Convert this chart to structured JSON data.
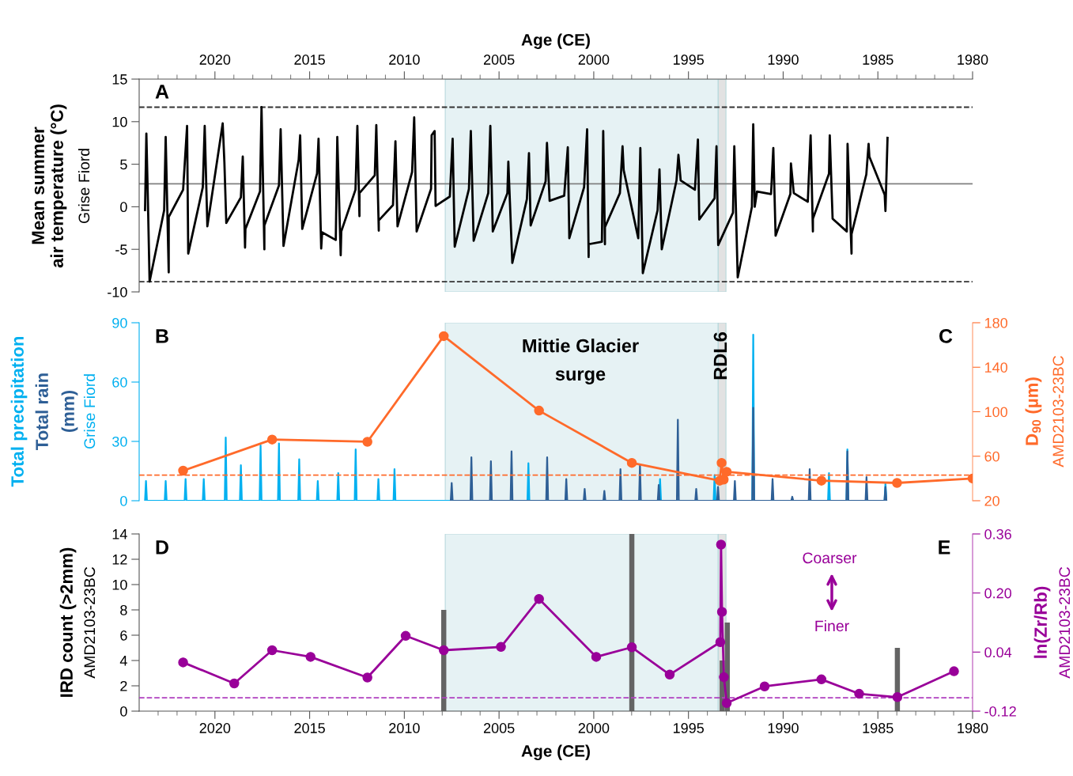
{
  "chart_data": [
    {
      "type": "line",
      "xlabel": "Age (CE)",
      "ylabel": "Mean summer\nair temperature (°C)",
      "annotations": [
        "A",
        "Grise Fiord"
      ],
      "xlim": [
        2024,
        1980
      ],
      "xticks": [
        {
          "value": 2023,
          "label": null
        },
        {
          "value": 2022,
          "label": null
        },
        {
          "value": 2021,
          "label": null
        },
        2020,
        {
          "value": 2019,
          "label": null
        },
        {
          "value": 2018,
          "label": null
        },
        {
          "value": 2017,
          "label": null
        },
        {
          "value": 2016,
          "label": null
        },
        2015,
        {
          "value": 2014,
          "label": null
        },
        {
          "value": 2013,
          "label": null
        },
        {
          "value": 2012,
          "label": null
        },
        {
          "value": 2011,
          "label": null
        },
        2010,
        {
          "value": 2009,
          "label": null
        },
        {
          "value": 2008,
          "label": null
        },
        {
          "value": 2007,
          "label": null
        },
        {
          "value": 2006,
          "label": null
        },
        2005,
        {
          "value": 2004,
          "label": null
        },
        {
          "value": 2003,
          "label": null
        },
        {
          "value": 2002,
          "label": null
        },
        {
          "value": 2001,
          "label": null
        },
        2000,
        {
          "value": 1999,
          "label": null
        },
        {
          "value": 1998,
          "label": null
        },
        {
          "value": 1997,
          "label": null
        },
        {
          "value": 1996,
          "label": null
        },
        1995,
        {
          "value": 1994,
          "label": null
        },
        {
          "value": 1993,
          "label": null
        },
        {
          "value": 1992,
          "label": null
        },
        {
          "value": 1991,
          "label": null
        },
        1990,
        {
          "value": 1989,
          "label": null
        },
        {
          "value": 1988,
          "label": null
        },
        {
          "value": 1987,
          "label": null
        },
        {
          "value": 1986,
          "label": null
        },
        1985,
        {
          "value": 1984,
          "label": null
        },
        {
          "value": 1983,
          "label": null
        },
        {
          "value": 1982,
          "label": null
        },
        {
          "value": 1981,
          "label": null
        },
        1980
      ],
      "ylim": [
        -10,
        15
      ],
      "yticks": [
        -10,
        -5,
        0,
        5,
        10,
        15
      ],
      "series": [
        {
          "color": "#000000",
          "x": [
            2023.69,
            2023.62,
            2023.54,
            2023.45,
            2022.68,
            2022.6,
            2022.44,
            2022.44,
            2021.68,
            2021.47,
            2021.41,
            2020.64,
            2020.54,
            2020.4,
            2019.59,
            2019.5,
            2019.4,
            2018.63,
            2018.53,
            2018.41,
            2018.39,
            2017.62,
            2017.54,
            2017.39,
            2017.39,
            2016.62,
            2016.53,
            2016.38,
            2015.58,
            2015.5,
            2015.39,
            2014.61,
            2014.53,
            2014.39,
            2014.34,
            2013.62,
            2013.54,
            2013.36,
            2013.33,
            2012.58,
            2012.48,
            2012.37,
            2012.37,
            2011.56,
            2011.48,
            2011.35,
            2011.35,
            2010.6,
            2010.47,
            2010.36,
            2009.59,
            2009.48,
            2009.35,
            2008.59,
            2008.56,
            2008.4,
            2008.35,
            2007.6,
            2007.45,
            2007.34,
            2006.59,
            2006.49,
            2006.34,
            2005.57,
            2005.46,
            2005.33,
            2004.56,
            2004.51,
            2004.3,
            2003.53,
            2003.42,
            2003.33,
            2002.54,
            2002.47,
            2002.33,
            2001.56,
            2001.37,
            2001.29,
            2000.51,
            2000.35,
            2000.27,
            2000.27,
            1999.57,
            1999.5,
            1999.41,
            1999.41,
            1998.62,
            1998.48,
            1998.42,
            1997.65,
            1997.54,
            1997.41,
            1996.63,
            1996.53,
            1996.41,
            1995.63,
            1995.53,
            1995.41,
            1994.66,
            1994.5,
            1994.43,
            1993.62,
            1993.52,
            1993.43,
            1992.65,
            1992.58,
            1992.4,
            1991.65,
            1991.58,
            1991.5,
            1991.38,
            1990.64,
            1990.52,
            1990.4,
            1989.62,
            1989.59,
            1989.44,
            1988.7,
            1988.55,
            1988.43,
            1988.43,
            1987.58,
            1987.54,
            1987.39,
            1986.64,
            1986.6,
            1986.39,
            1986.39,
            1985.61,
            1985.49,
            1985.45,
            1984.64,
            1984.6,
            1984.49
          ],
          "values": [
            -0.4,
            8.6,
            0.9,
            -8.8,
            -0.4,
            8.2,
            -7.7,
            -1.2,
            2.0,
            9.5,
            -5.5,
            2.3,
            9.5,
            -2.3,
            9.8,
            5.2,
            -1.9,
            1.1,
            5.9,
            -4.8,
            -2.6,
            1.8,
            11.7,
            -5.0,
            -2.2,
            2.5,
            9.1,
            -4.6,
            5.5,
            8.4,
            -2.6,
            3.9,
            8.0,
            -4.9,
            -3.0,
            -3.9,
            8.2,
            -5.7,
            -2.9,
            2.0,
            9.5,
            -1.1,
            1.6,
            3.7,
            9.6,
            -2.8,
            -1.6,
            0.2,
            7.7,
            -2.3,
            4.1,
            10.5,
            -2.9,
            2.1,
            8.4,
            8.9,
            0.1,
            1.2,
            8.0,
            -4.7,
            2.1,
            8.9,
            -4.0,
            1.6,
            9.5,
            -2.9,
            1.6,
            5.3,
            -6.6,
            0.9,
            6.3,
            -2.2,
            3.0,
            7.5,
            0.7,
            1.3,
            7.0,
            -3.7,
            2.3,
            9.1,
            -5.9,
            -4.4,
            -4.1,
            8.9,
            -4.4,
            -2.4,
            1.6,
            7.1,
            4.3,
            -3.7,
            6.9,
            -7.8,
            -0.4,
            4.4,
            -5.0,
            3.1,
            6.1,
            3.1,
            2.0,
            7.9,
            -1.5,
            1.0,
            7.1,
            -4.5,
            -0.7,
            7.1,
            -8.3,
            0.0,
            9.7,
            0.0,
            1.8,
            1.5,
            6.9,
            -3.4,
            1.5,
            5.1,
            1.6,
            0.6,
            8.4,
            -2.9,
            -1.4,
            3.9,
            8.4,
            -1.4,
            -2.9,
            7.4,
            -5.5,
            -3.2,
            3.8,
            7.4,
            5.9,
            1.4,
            -0.5,
            8.1
          ]
        }
      ],
      "ref_lines": [
        {
          "axis": "y",
          "value": 11.7,
          "line_style": "dashed",
          "color": "#333333"
        },
        {
          "axis": "y",
          "value": 2.7,
          "line_style": "solid",
          "color": "#808080"
        },
        {
          "axis": "y",
          "value": -8.8,
          "line_style": "dashed",
          "color": "#333333"
        }
      ],
      "bands": [
        {
          "axis": "x",
          "from": 2007.84,
          "to": 1993.43,
          "color": "#e6f2f4"
        },
        {
          "axis": "x",
          "from": 1993.43,
          "to": 1993.02,
          "color": "#e2e2e2"
        }
      ]
    },
    {
      "type": "line",
      "ylabel": "(mm)",
      "y2label": "D$_{90}$ (µm)",
      "annotations": [
        "B",
        "C",
        "Grise Fiord",
        "AMD2103-23BC"
      ],
      "xlim": [
        2024,
        1980
      ],
      "ylim": [
        0,
        90
      ],
      "yticks": [
        0,
        30,
        60,
        90
      ],
      "y2lim": [
        20,
        180
      ],
      "y2ticks": [
        20,
        60,
        100,
        140,
        180
      ],
      "tick_labels": "y",
      "series": [
        {
          "name": "Total precipitation",
          "color": "#00b0f0",
          "x": [
            2023.69,
            2023.64,
            2023.59,
            2022.65,
            2022.6,
            2022.55,
            2021.6,
            2021.55,
            2021.5,
            2020.64,
            2020.59,
            2020.54,
            2019.48,
            2019.43,
            2019.38,
            2018.68,
            2018.63,
            2018.58,
            2017.64,
            2017.59,
            2017.54,
            2016.67,
            2016.62,
            2016.57,
            2015.6,
            2015.55,
            2015.5,
            2014.62,
            2014.57,
            2014.52,
            2013.54,
            2013.49,
            2013.44,
            2012.62,
            2012.57,
            2012.52,
            2011.42,
            2011.37,
            2011.32,
            2010.57,
            2010.52,
            2010.47,
            2003.5,
            2003.45,
            2003.4,
            1996.55,
            1996.5,
            1996.45,
            1993.67,
            1993.62,
            1993.57,
            1991.63,
            1991.58,
            1991.53,
            1987.63,
            1987.58,
            1987.53,
            1986.66,
            1986.61,
            1986.56,
            1984.65,
            1984.6,
            1984.55
          ],
          "values": [
            0,
            10,
            0,
            0,
            10,
            0,
            0,
            11,
            0,
            0,
            11,
            0,
            0,
            32,
            0,
            0,
            18,
            0,
            0,
            28,
            0,
            0,
            29,
            0,
            0,
            21,
            0,
            0,
            10,
            0,
            0,
            14,
            0,
            0,
            26,
            0,
            0,
            11,
            0,
            0,
            16,
            0,
            0,
            19,
            0,
            0,
            11,
            0,
            0,
            13,
            0,
            0,
            84,
            0,
            0,
            14,
            0,
            0,
            26,
            0,
            0,
            9,
            0
          ]
        },
        {
          "name": "Total rain",
          "color": "#2e5f96",
          "x": [
            2007.55,
            2007.5,
            2007.45,
            2006.51,
            2006.46,
            2006.41,
            2005.48,
            2005.43,
            2005.38,
            2004.39,
            2004.34,
            2004.29,
            2002.51,
            2002.46,
            2002.41,
            2001.5,
            2001.45,
            2001.4,
            2000.53,
            2000.48,
            2000.43,
            1999.49,
            1999.44,
            1999.39,
            1998.64,
            1998.59,
            1998.54,
            1997.61,
            1997.56,
            1997.51,
            1996.62,
            1996.57,
            1996.52,
            1995.61,
            1995.56,
            1995.51,
            1994.64,
            1994.59,
            1994.54,
            1993.49,
            1993.44,
            1993.39,
            1992.6,
            1992.55,
            1992.5,
            1991.63,
            1991.58,
            1991.53,
            1990.61,
            1990.56,
            1990.51,
            1989.57,
            1989.52,
            1989.47,
            1988.65,
            1988.6,
            1988.55,
            1986.66,
            1986.61,
            1986.56,
            1985.65,
            1985.6,
            1985.55,
            1984.65,
            1984.6,
            1984.55
          ],
          "values": [
            0,
            9,
            0,
            0,
            22,
            0,
            0,
            20,
            0,
            0,
            25,
            0,
            0,
            22,
            0,
            0,
            11,
            0,
            0,
            6,
            0,
            0,
            5,
            0,
            0,
            16,
            0,
            0,
            18,
            0,
            0,
            8,
            0,
            0,
            41,
            0,
            0,
            6,
            0,
            0,
            7,
            0,
            0,
            10,
            0,
            0,
            47,
            0,
            0,
            11,
            0,
            0,
            2,
            0,
            0,
            16,
            0,
            0,
            25,
            0,
            0,
            12,
            0,
            0,
            7,
            0
          ]
        },
        {
          "color": "#ff6a2a",
          "axis": "y2",
          "marker": "circle",
          "x": [
            2021.68,
            2016.98,
            2011.95,
            2007.92,
            2002.89,
            1997.99,
            1993.35,
            1993.25,
            1993.14,
            1992.98,
            1987.98,
            1983.99,
            1980
          ],
          "values": [
            47,
            75,
            73,
            168,
            101,
            54,
            38,
            54,
            39,
            46,
            38,
            36,
            40
          ]
        }
      ],
      "ref_lines": [
        {
          "axis": "y2",
          "value": 43,
          "line_style": "dashed",
          "color": "#ff6a2a"
        }
      ],
      "bands": [
        {
          "axis": "x",
          "from": 2007.84,
          "to": 1993.43,
          "color": "#e6f2f4",
          "label": "Mittie Glacier\nsurge"
        },
        {
          "axis": "x",
          "from": 1993.43,
          "to": 1993.02,
          "color": "#e2e2e2",
          "label": "RDL6"
        }
      ]
    },
    {
      "type": "line",
      "xlabel": "Age (CE)",
      "ylabel": "IRD count (>2mm)",
      "y2label": "ln(Zr/Rb)",
      "annotations": [
        "D",
        "E",
        "AMD2103-23BC",
        "AMD2103-23BC",
        "Coarser",
        "Finer"
      ],
      "xlim": [
        2024,
        1980
      ],
      "xticks": [
        {
          "value": 2023,
          "label": null
        },
        {
          "value": 2022,
          "label": null
        },
        {
          "value": 2021,
          "label": null
        },
        2020,
        {
          "value": 2019,
          "label": null
        },
        {
          "value": 2018,
          "label": null
        },
        {
          "value": 2017,
          "label": null
        },
        {
          "value": 2016,
          "label": null
        },
        2015,
        {
          "value": 2014,
          "label": null
        },
        {
          "value": 2013,
          "label": null
        },
        {
          "value": 2012,
          "label": null
        },
        {
          "value": 2011,
          "label": null
        },
        2010,
        {
          "value": 2009,
          "label": null
        },
        {
          "value": 2008,
          "label": null
        },
        {
          "value": 2007,
          "label": null
        },
        {
          "value": 2006,
          "label": null
        },
        2005,
        {
          "value": 2004,
          "label": null
        },
        {
          "value": 2003,
          "label": null
        },
        {
          "value": 2002,
          "label": null
        },
        {
          "value": 2001,
          "label": null
        },
        2000,
        {
          "value": 1999,
          "label": null
        },
        {
          "value": 1998,
          "label": null
        },
        {
          "value": 1997,
          "label": null
        },
        {
          "value": 1996,
          "label": null
        },
        1995,
        {
          "value": 1994,
          "label": null
        },
        {
          "value": 1993,
          "label": null
        },
        {
          "value": 1992,
          "label": null
        },
        {
          "value": 1991,
          "label": null
        },
        1990,
        {
          "value": 1989,
          "label": null
        },
        {
          "value": 1988,
          "label": null
        },
        {
          "value": 1987,
          "label": null
        },
        {
          "value": 1986,
          "label": null
        },
        1985,
        {
          "value": 1984,
          "label": null
        },
        {
          "value": 1983,
          "label": null
        },
        {
          "value": 1982,
          "label": null
        },
        {
          "value": 1981,
          "label": null
        },
        1980
      ],
      "ylim": [
        0,
        14
      ],
      "yticks": [
        0,
        2,
        4,
        6,
        8,
        10,
        12,
        14
      ],
      "y2lim": [
        -0.12,
        0.36
      ],
      "y2ticks": [
        -0.12,
        0.04,
        {
          "value": 0.2,
          "label": "0.20"
        },
        0.36
      ],
      "series": [
        {
          "type": "bar",
          "color": "#646464",
          "x": [
            2016.98,
            2007.92,
            1997.99,
            1993.22,
            1992.95,
            1983.97
          ],
          "values": [
            0,
            8,
            14,
            4,
            7,
            5
          ]
        },
        {
          "color": "#990099",
          "axis": "y2",
          "marker": "circle",
          "x": [
            2021.68,
            2018.98,
            2016.98,
            2014.95,
            2011.95,
            2009.93,
            2007.92,
            2004.9,
            2002.89,
            1999.87,
            1997.99,
            1995.99,
            1993.32,
            1993.28,
            1993.23,
            1993.13,
            1992.98,
            1990.98,
            1987.98,
            1985.99,
            1983.97,
            1980.98
          ],
          "values": [
            0.012,
            -0.045,
            0.045,
            0.027,
            -0.029,
            0.084,
            0.045,
            0.054,
            0.184,
            0.027,
            0.053,
            -0.021,
            0.067,
            0.331,
            0.149,
            -0.028,
            -0.098,
            -0.053,
            -0.034,
            -0.073,
            -0.082,
            -0.012
          ]
        }
      ],
      "ref_lines": [
        {
          "axis": "y2",
          "value": -0.084,
          "line_style": "dashed",
          "color": "#b040c0"
        }
      ],
      "bands": [
        {
          "axis": "x",
          "from": 2007.84,
          "to": 1993.43,
          "color": "#e6f2f4"
        },
        {
          "axis": "x",
          "from": 1993.43,
          "to": 1993.02,
          "color": "#e2e2e2"
        }
      ]
    }
  ]
}
